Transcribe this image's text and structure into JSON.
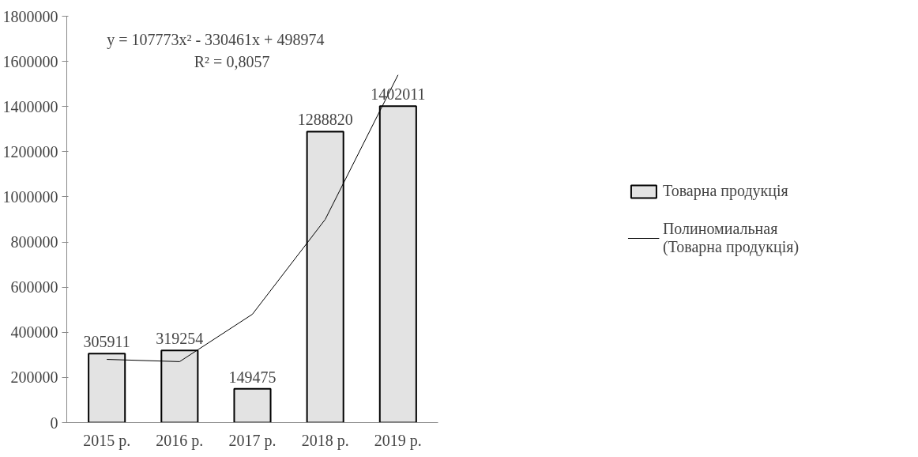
{
  "chart_data": {
    "type": "bar",
    "categories": [
      "2015 р.",
      "2016 р.",
      "2017 р.",
      "2018 р.",
      "2019 р."
    ],
    "series": [
      {
        "name": "Товарна продукція",
        "color": "#e3e3e3",
        "values": [
          305911,
          319254,
          149475,
          1288820,
          1402011
        ],
        "value_labels": [
          "305911",
          "319254",
          "149475",
          "1288820",
          "1402011"
        ]
      },
      {
        "name": "Полиномиальная (Товарна продукція)",
        "type": "line",
        "color": "#000000",
        "values": [
          280000,
          270000,
          480000,
          900000,
          1540000
        ]
      }
    ],
    "ylim": [
      0,
      1800000
    ],
    "yticks": [
      0,
      200000,
      400000,
      600000,
      800000,
      1000000,
      1200000,
      1400000,
      1600000,
      1800000
    ],
    "grid": false,
    "legend": "right",
    "annotations": [
      "y = 107773x² - 330461x + 498974",
      "R² = 0,8057"
    ]
  }
}
